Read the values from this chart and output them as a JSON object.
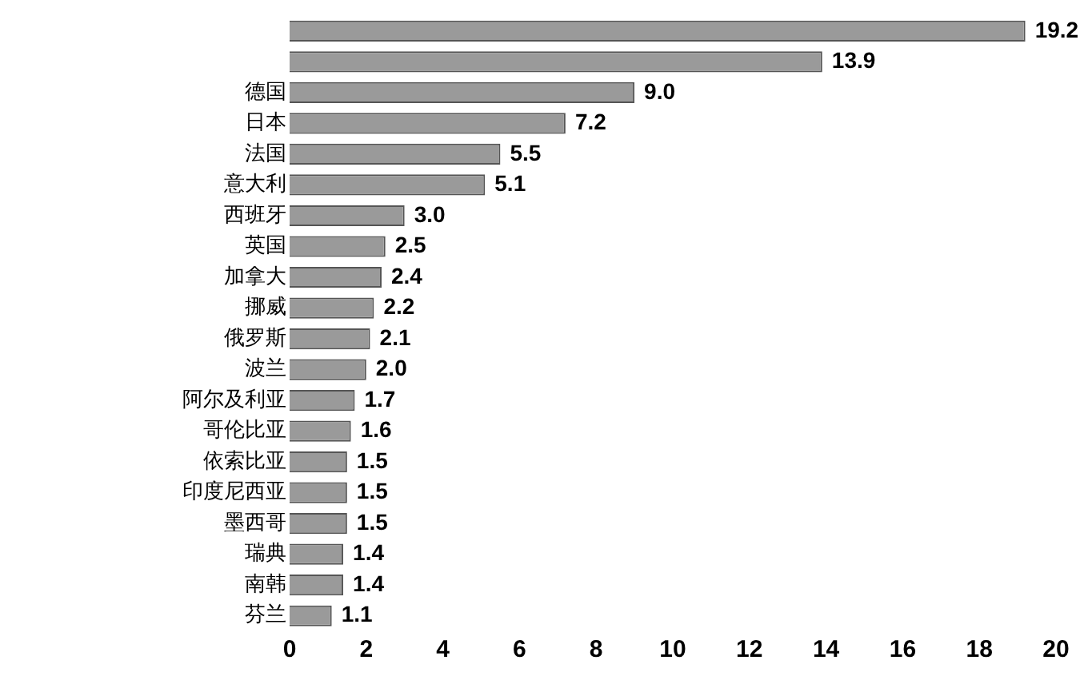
{
  "chart_data": {
    "type": "bar",
    "orientation": "horizontal",
    "categories": [
      null,
      null,
      "德国",
      "日本",
      "法国",
      "意大利",
      "西班牙",
      "英国",
      "加拿大",
      "挪威",
      "俄罗斯",
      "波兰",
      "阿尔及利亚",
      "哥伦比亚",
      "依索比亚",
      "印度尼西亚",
      "墨西哥",
      "瑞典",
      "南韩",
      "芬兰"
    ],
    "values": [
      19.2,
      13.9,
      9.0,
      7.2,
      5.5,
      5.1,
      3.0,
      2.5,
      2.4,
      2.2,
      2.1,
      2.0,
      1.7,
      1.6,
      1.5,
      1.5,
      1.5,
      1.4,
      1.4,
      1.1
    ],
    "value_labels": [
      "19.2",
      "13.9",
      "9.0",
      "7.2",
      "5.5",
      "5.1",
      "3.0",
      "2.5",
      "2.4",
      "2.2",
      "2.1",
      "2.0",
      "1.7",
      "1.6",
      "1.5",
      "1.5",
      "1.5",
      "1.4",
      "1.4",
      "1.1"
    ],
    "color": "#9a9a9a",
    "xlim": [
      0,
      20
    ],
    "xticks": [
      0,
      2,
      4,
      6,
      8,
      10,
      12,
      14,
      16,
      18,
      20
    ],
    "grid": false,
    "legend": false
  }
}
